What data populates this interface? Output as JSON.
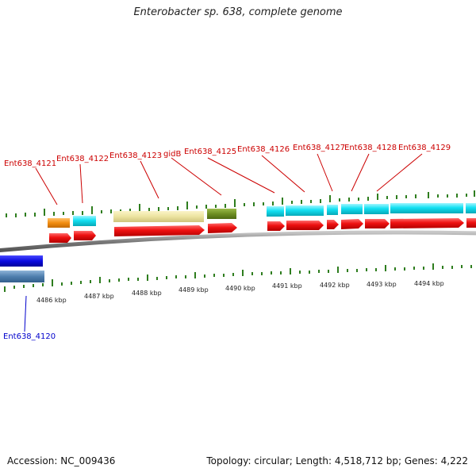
{
  "title": "Enterobacter sp. 638, complete genome",
  "accession": "Accession: NC_009436",
  "summary": "Topology: circular; Length: 4,518,712 bp; Genes: 4,222",
  "colors": {
    "backbone": "#8a8a8a",
    "tick": "#2e7d1e",
    "cds_red": "#ee1111",
    "label_red": "#cc0000",
    "label_blue": "#0000cc"
  },
  "scale_labels": [
    "4486 kbp",
    "4487 kbp",
    "4488 kbp",
    "4489 kbp",
    "4490 kbp",
    "4491 kbp",
    "4492 kbp",
    "4493 kbp",
    "4494 kbp"
  ],
  "gene_labels": [
    {
      "text": "Ent638_4121",
      "color": "red"
    },
    {
      "text": "Ent638_4122",
      "color": "red"
    },
    {
      "text": "Ent638_4123",
      "color": "red"
    },
    {
      "text": "gidB",
      "color": "red"
    },
    {
      "text": "Ent638_4125",
      "color": "red"
    },
    {
      "text": "Ent638_4126",
      "color": "red"
    },
    {
      "text": "Ent638_4127",
      "color": "red"
    },
    {
      "text": "Ent638_4128",
      "color": "red"
    },
    {
      "text": "Ent638_4129",
      "color": "red"
    },
    {
      "text": "Ent638_4120",
      "color": "blue"
    }
  ]
}
